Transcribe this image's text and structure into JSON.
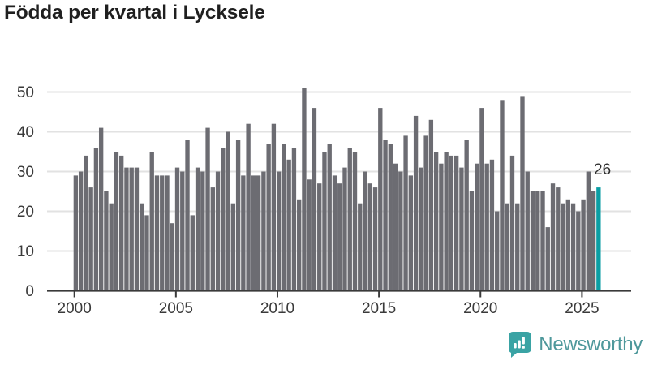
{
  "title": "Födda per kvartal i Lycksele",
  "logo": {
    "text": "Newsworthy"
  },
  "colors": {
    "bar": "#6c6c72",
    "highlight": "#0a9ea4",
    "grid": "#e2e2e2",
    "axis": "#3a3a3a",
    "tick_label": "#3a3a3a",
    "annotation": "#2e2e2e",
    "title": "#1f1f1f",
    "logo_icon": "#3aa3a4",
    "logo_text": "#4e989b"
  },
  "chart_data": {
    "type": "bar",
    "title": "Födda per kvartal i Lycksele",
    "x_start": "2000-Q1",
    "frequency": "quarterly",
    "values": [
      29,
      30,
      34,
      26,
      36,
      41,
      25,
      22,
      35,
      34,
      31,
      31,
      31,
      22,
      19,
      35,
      29,
      29,
      29,
      17,
      31,
      30,
      38,
      19,
      31,
      30,
      41,
      26,
      30,
      36,
      40,
      22,
      38,
      29,
      42,
      29,
      29,
      30,
      37,
      42,
      30,
      37,
      33,
      36,
      23,
      51,
      28,
      46,
      27,
      35,
      37,
      29,
      27,
      31,
      36,
      35,
      22,
      30,
      27,
      26,
      46,
      38,
      37,
      32,
      30,
      39,
      29,
      44,
      31,
      39,
      43,
      35,
      32,
      35,
      34,
      34,
      31,
      38,
      25,
      32,
      46,
      32,
      33,
      20,
      48,
      22,
      34,
      22,
      49,
      30,
      25,
      25,
      25,
      16,
      27,
      26,
      22,
      23,
      22,
      20,
      23,
      30,
      25,
      26
    ],
    "highlight_last_bar": true,
    "last_value_label": "26",
    "x_tick_labels": [
      "2000",
      "2005",
      "2010",
      "2015",
      "2020",
      "2025"
    ],
    "yticks": [
      0,
      10,
      20,
      30,
      40,
      50
    ],
    "ylim": [
      0,
      50
    ],
    "grid": "horizontal",
    "legend": "none"
  }
}
